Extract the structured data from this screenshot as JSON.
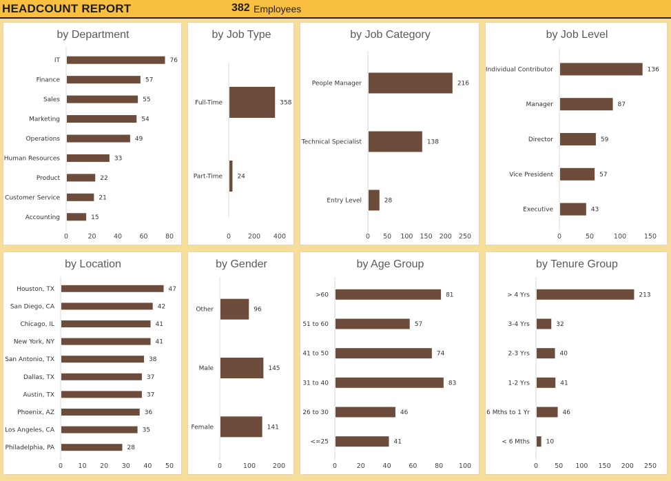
{
  "header": {
    "title": "HEADCOUNT REPORT",
    "count": "382",
    "count_label": "Employees"
  },
  "colors": {
    "header_bg": "#f8bf41",
    "page_bg": "#f7dd9a",
    "bar": "#6d4c3b"
  },
  "chart_data": [
    {
      "id": "department",
      "type": "bar",
      "orientation": "horizontal",
      "title": "by Department",
      "categories": [
        "IT",
        "Finance",
        "Sales",
        "Marketing",
        "Operations",
        "Human Resources",
        "Product",
        "Customer Service",
        "Accounting"
      ],
      "values": [
        76,
        57,
        55,
        54,
        49,
        33,
        22,
        21,
        15
      ],
      "xlim": [
        0,
        80
      ],
      "xticks": [
        0,
        20,
        40,
        60,
        80
      ],
      "grid": false
    },
    {
      "id": "jobtype",
      "type": "bar",
      "orientation": "horizontal",
      "title": "by Job Type",
      "categories": [
        "Full-Time",
        "Part-Time"
      ],
      "values": [
        358,
        24
      ],
      "xlim": [
        0,
        400
      ],
      "xticks": [
        0,
        200,
        400
      ],
      "grid": false
    },
    {
      "id": "jobcategory",
      "type": "bar",
      "orientation": "horizontal",
      "title": "by Job Category",
      "categories": [
        "People Manager",
        "Technical Specialist",
        "Entry Level"
      ],
      "values": [
        216,
        138,
        28
      ],
      "xlim": [
        0,
        250
      ],
      "xticks": [
        0,
        50,
        100,
        150,
        200,
        250
      ],
      "grid": false
    },
    {
      "id": "joblevel",
      "type": "bar",
      "orientation": "horizontal",
      "title": "by Job Level",
      "categories": [
        "Individual Contributor",
        "Manager",
        "Director",
        "Vice President",
        "Executive"
      ],
      "values": [
        136,
        87,
        59,
        57,
        43
      ],
      "xlim": [
        0,
        150
      ],
      "xticks": [
        0,
        50,
        100,
        150
      ],
      "grid": false
    },
    {
      "id": "location",
      "type": "bar",
      "orientation": "horizontal",
      "title": "by Location",
      "categories": [
        "Houston, TX",
        "San Diego, CA",
        "Chicago, IL",
        "New York, NY",
        "San Antonio, TX",
        "Dallas, TX",
        "Austin, TX",
        "Phoenix, AZ",
        "Los Angeles, CA",
        "Philadelphia, PA"
      ],
      "values": [
        47,
        42,
        41,
        41,
        38,
        37,
        37,
        36,
        35,
        28
      ],
      "xlim": [
        0,
        50
      ],
      "xticks": [
        0,
        10,
        20,
        30,
        40,
        50
      ],
      "grid": false
    },
    {
      "id": "gender",
      "type": "bar",
      "orientation": "horizontal",
      "title": "by Gender",
      "categories": [
        "Other",
        "Male",
        "Female"
      ],
      "values": [
        96,
        145,
        141
      ],
      "xlim": [
        0,
        200
      ],
      "xticks": [
        0,
        100,
        200
      ],
      "grid": false
    },
    {
      "id": "agegroup",
      "type": "bar",
      "orientation": "horizontal",
      "title": "by Age Group",
      "categories": [
        ">60",
        "51 to 60",
        "41 to 50",
        "31 to 40",
        "26 to 30",
        "<=25"
      ],
      "values": [
        81,
        57,
        74,
        83,
        46,
        41
      ],
      "xlim": [
        0,
        100
      ],
      "xticks": [
        0,
        20,
        40,
        60,
        80,
        100
      ],
      "grid": false
    },
    {
      "id": "tenure",
      "type": "bar",
      "orientation": "horizontal",
      "title": "by Tenure Group",
      "categories": [
        "> 4 Yrs",
        "3-4 Yrs",
        "2-3 Yrs",
        "1-2 Yrs",
        "6 Mths to 1 Yr",
        "< 6 Mths"
      ],
      "values": [
        213,
        32,
        40,
        41,
        46,
        10
      ],
      "xlim": [
        0,
        250
      ],
      "xticks": [
        0,
        50,
        100,
        150,
        200,
        250
      ],
      "grid": false
    }
  ]
}
